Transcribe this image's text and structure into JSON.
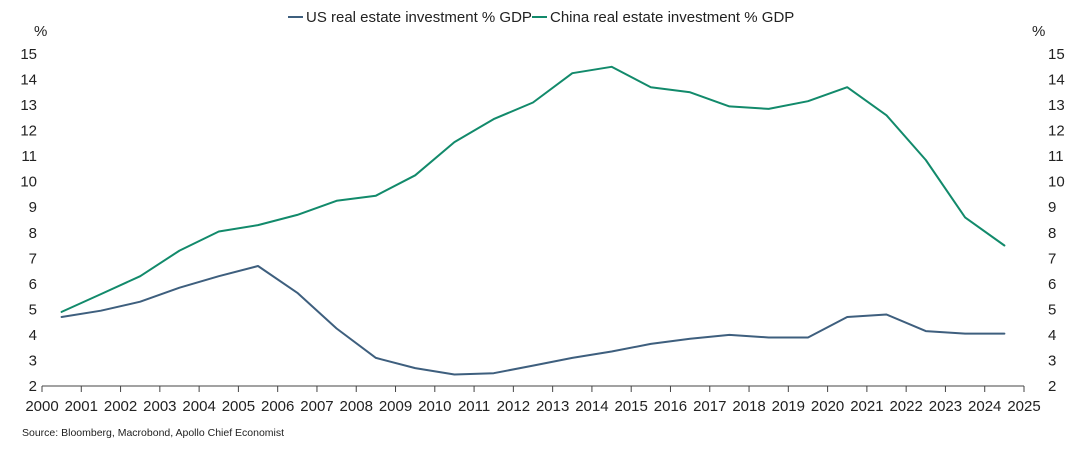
{
  "source_note": "Source: Bloomberg, Macrobond, Apollo Chief Economist",
  "chart_data": {
    "type": "line",
    "title": "",
    "xlabel": "",
    "ylabel": "%",
    "ylabel_right": "%",
    "ylim": [
      2,
      15
    ],
    "xlim": [
      2000,
      2025
    ],
    "x_ticks": [
      "2000",
      "2001",
      "2002",
      "2003",
      "2004",
      "2005",
      "2006",
      "2007",
      "2008",
      "2009",
      "2010",
      "2011",
      "2012",
      "2013",
      "2014",
      "2015",
      "2016",
      "2017",
      "2018",
      "2019",
      "2020",
      "2021",
      "2022",
      "2023",
      "2024",
      "2025"
    ],
    "y_ticks": [
      "2",
      "3",
      "4",
      "5",
      "6",
      "7",
      "8",
      "9",
      "10",
      "11",
      "12",
      "13",
      "14",
      "15"
    ],
    "grid": false,
    "legend_position": "top-center",
    "series": [
      {
        "name": "US real estate investment % GDP",
        "color": "#3e5f7e",
        "x": [
          2000.5,
          2001.5,
          2002.5,
          2003.5,
          2004.5,
          2005.5,
          2006.5,
          2007.5,
          2008.5,
          2009.5,
          2010.5,
          2011.5,
          2012.5,
          2013.5,
          2014.5,
          2015.5,
          2016.5,
          2017.5,
          2018.5,
          2019.5,
          2020.5,
          2021.5,
          2022.5,
          2023.5,
          2024.5
        ],
        "values": [
          4.7,
          4.95,
          5.3,
          5.85,
          6.3,
          6.7,
          5.65,
          4.25,
          3.1,
          2.7,
          2.45,
          2.5,
          2.8,
          3.1,
          3.35,
          3.65,
          3.85,
          4.0,
          3.9,
          3.9,
          4.7,
          4.8,
          4.15,
          4.05,
          4.05
        ]
      },
      {
        "name": "China real estate investment % GDP",
        "color": "#128a6b",
        "x": [
          2000.5,
          2001.5,
          2002.5,
          2003.5,
          2004.5,
          2005.5,
          2006.5,
          2007.5,
          2008.5,
          2009.5,
          2010.5,
          2011.5,
          2012.5,
          2013.5,
          2014.5,
          2015.5,
          2016.5,
          2017.5,
          2018.5,
          2019.5,
          2020.5,
          2021.5,
          2022.5,
          2023.5,
          2024.5
        ],
        "values": [
          4.9,
          5.6,
          6.3,
          7.3,
          8.05,
          8.3,
          8.7,
          9.25,
          9.45,
          10.25,
          11.55,
          12.45,
          13.1,
          14.25,
          14.5,
          13.7,
          13.5,
          12.95,
          12.85,
          13.15,
          13.7,
          12.6,
          10.85,
          8.6,
          7.5
        ]
      }
    ]
  }
}
